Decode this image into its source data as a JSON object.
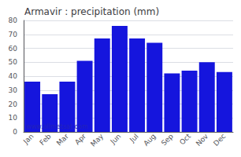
{
  "chart_data": {
    "type": "bar",
    "title": "Armavir : precipitation (mm)",
    "categories": [
      "Jan",
      "Feb",
      "Mar",
      "Apr",
      "May",
      "Jun",
      "Jul",
      "Aug",
      "Sep",
      "Oct",
      "Nov",
      "Dec"
    ],
    "values": [
      36,
      27,
      36,
      51,
      67,
      76,
      67,
      64,
      42,
      44,
      50,
      43
    ],
    "color": "#1515dd",
    "ylim": [
      0,
      80
    ],
    "yticks": [
      0,
      10,
      20,
      30,
      40,
      50,
      60,
      70,
      80
    ],
    "grid": true,
    "annotation": "www.allmetsat.com"
  }
}
